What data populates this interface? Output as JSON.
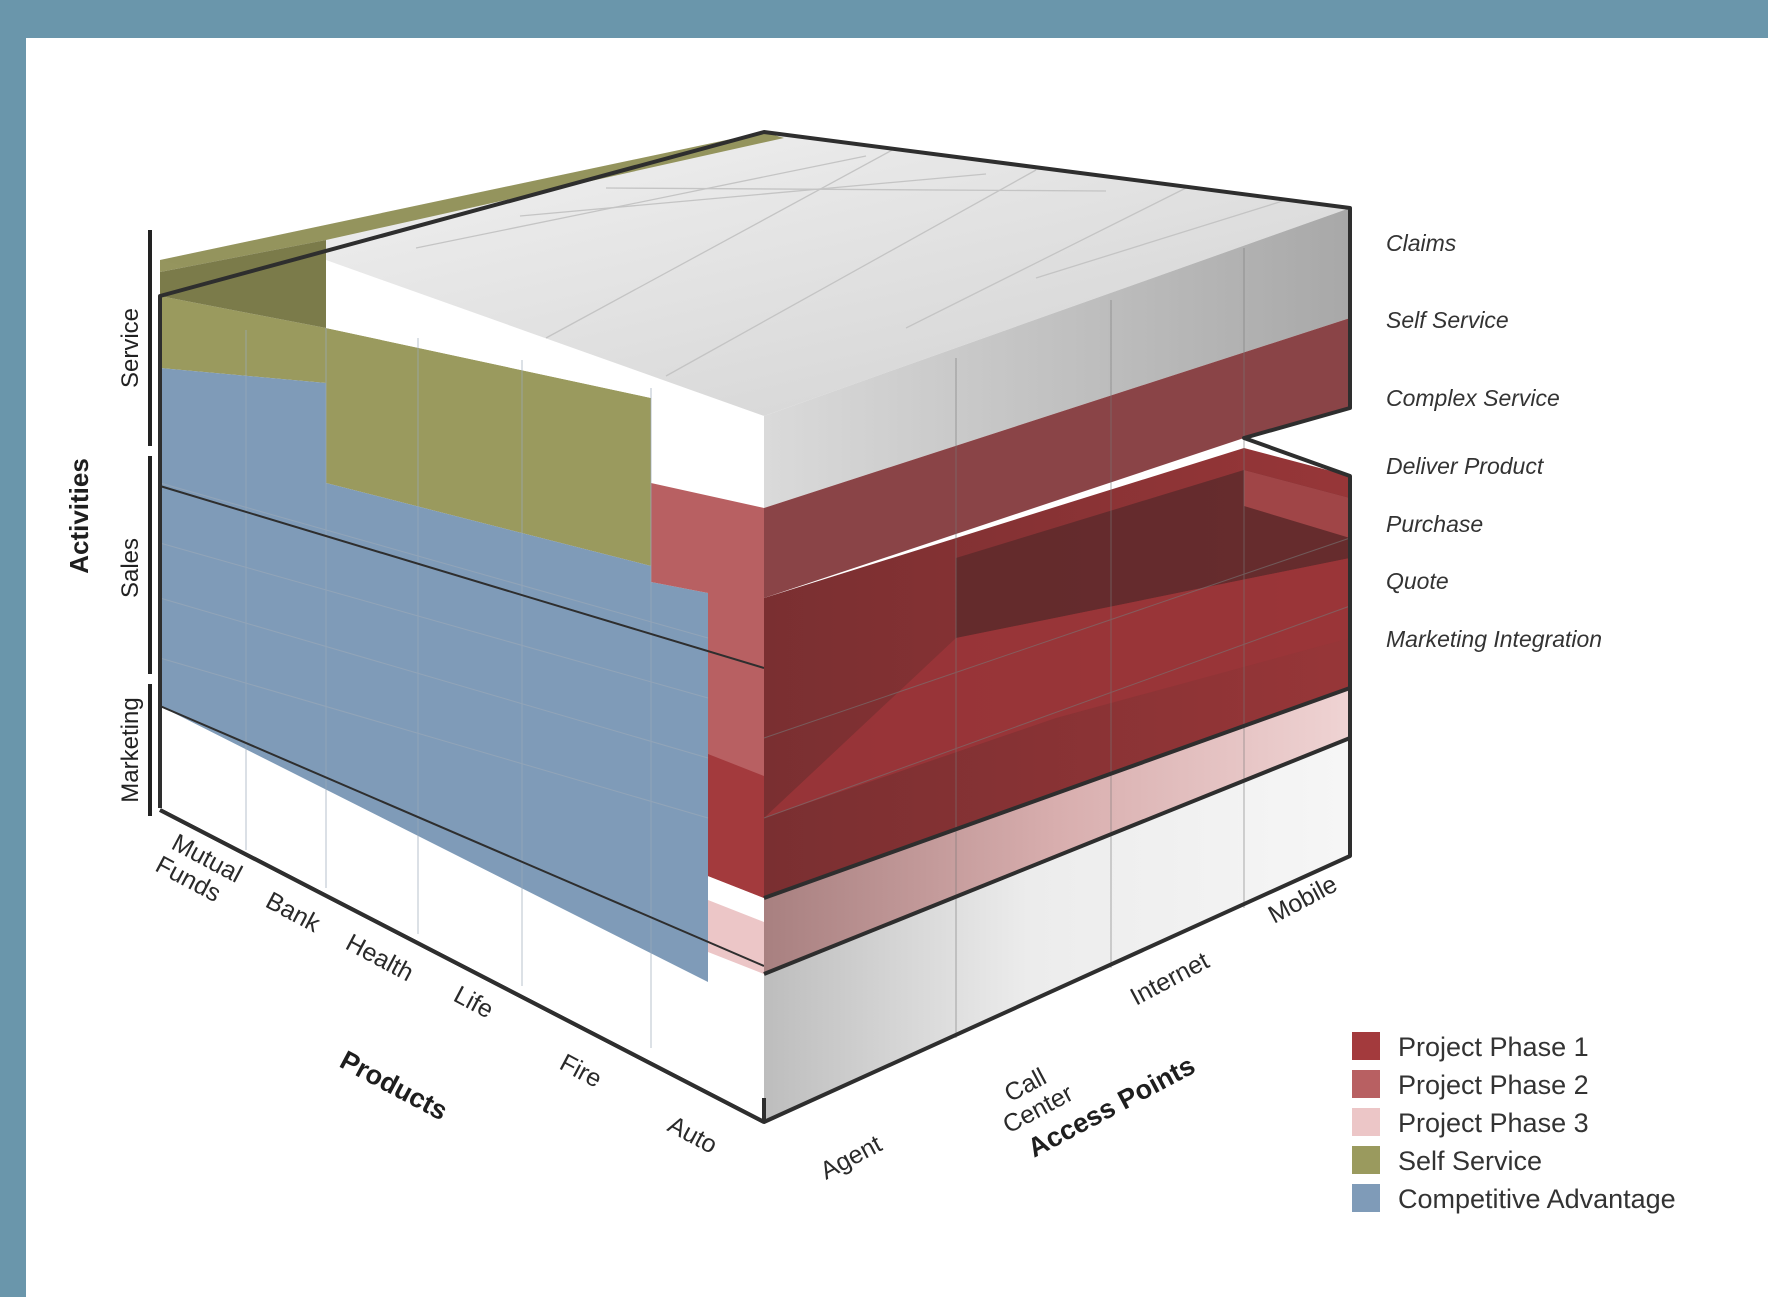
{
  "axes": {
    "activities": "Activities",
    "products": "Products",
    "access_points": "Access Points"
  },
  "activity_groups": [
    "Service",
    "Sales",
    "Marketing"
  ],
  "activities": [
    "Claims",
    "Self Service",
    "Complex Service",
    "Deliver Product",
    "Purchase",
    "Quote",
    "Marketing Integration"
  ],
  "products": [
    "Mutual Funds",
    "Bank",
    "Health",
    "Life",
    "Fire",
    "Auto"
  ],
  "access_points": [
    "Agent",
    "Call Center",
    "Internet",
    "Mobile"
  ],
  "legend": [
    {
      "label": "Project Phase 1",
      "color": "#a33a3d"
    },
    {
      "label": "Project Phase 2",
      "color": "#b86062"
    },
    {
      "label": "Project Phase 3",
      "color": "#ecc6c7"
    },
    {
      "label": "Self Service",
      "color": "#9a9a5e"
    },
    {
      "label": "Competitive Advantage",
      "color": "#7f9bb8"
    }
  ],
  "colors": {
    "background": "#6a96ab",
    "panel": "#ffffff",
    "outline": "#2e2e2e"
  }
}
